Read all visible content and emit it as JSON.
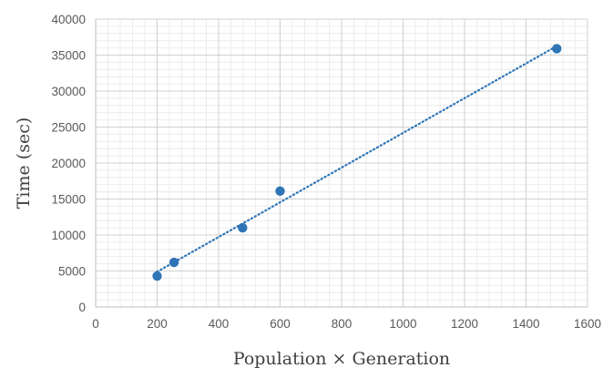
{
  "chart_data": {
    "type": "scatter",
    "title": "",
    "xlabel": "Population × Generation",
    "ylabel": "Time (sec)",
    "xlim": [
      0,
      1600
    ],
    "ylim": [
      0,
      40000
    ],
    "x_major_step": 200,
    "y_major_step": 5000,
    "x_minor_step": 40,
    "y_minor_step": 1000,
    "x_ticks": [
      "0",
      "200",
      "400",
      "600",
      "800",
      "1000",
      "1200",
      "1400",
      "1600"
    ],
    "y_ticks": [
      "0",
      "5000",
      "10000",
      "15000",
      "20000",
      "25000",
      "30000",
      "35000",
      "40000"
    ],
    "grid": true,
    "legend": "none",
    "series": [
      {
        "points": [
          {
            "x": 200,
            "y": 4300
          },
          {
            "x": 255,
            "y": 6200
          },
          {
            "x": 478,
            "y": 11000
          },
          {
            "x": 600,
            "y": 16100
          },
          {
            "x": 1500,
            "y": 35900
          }
        ],
        "color": "#2E75B6"
      }
    ],
    "trendline": {
      "type": "linear",
      "style": "dotted",
      "x_range": [
        200,
        1500
      ],
      "color": "#2E75B6"
    }
  }
}
